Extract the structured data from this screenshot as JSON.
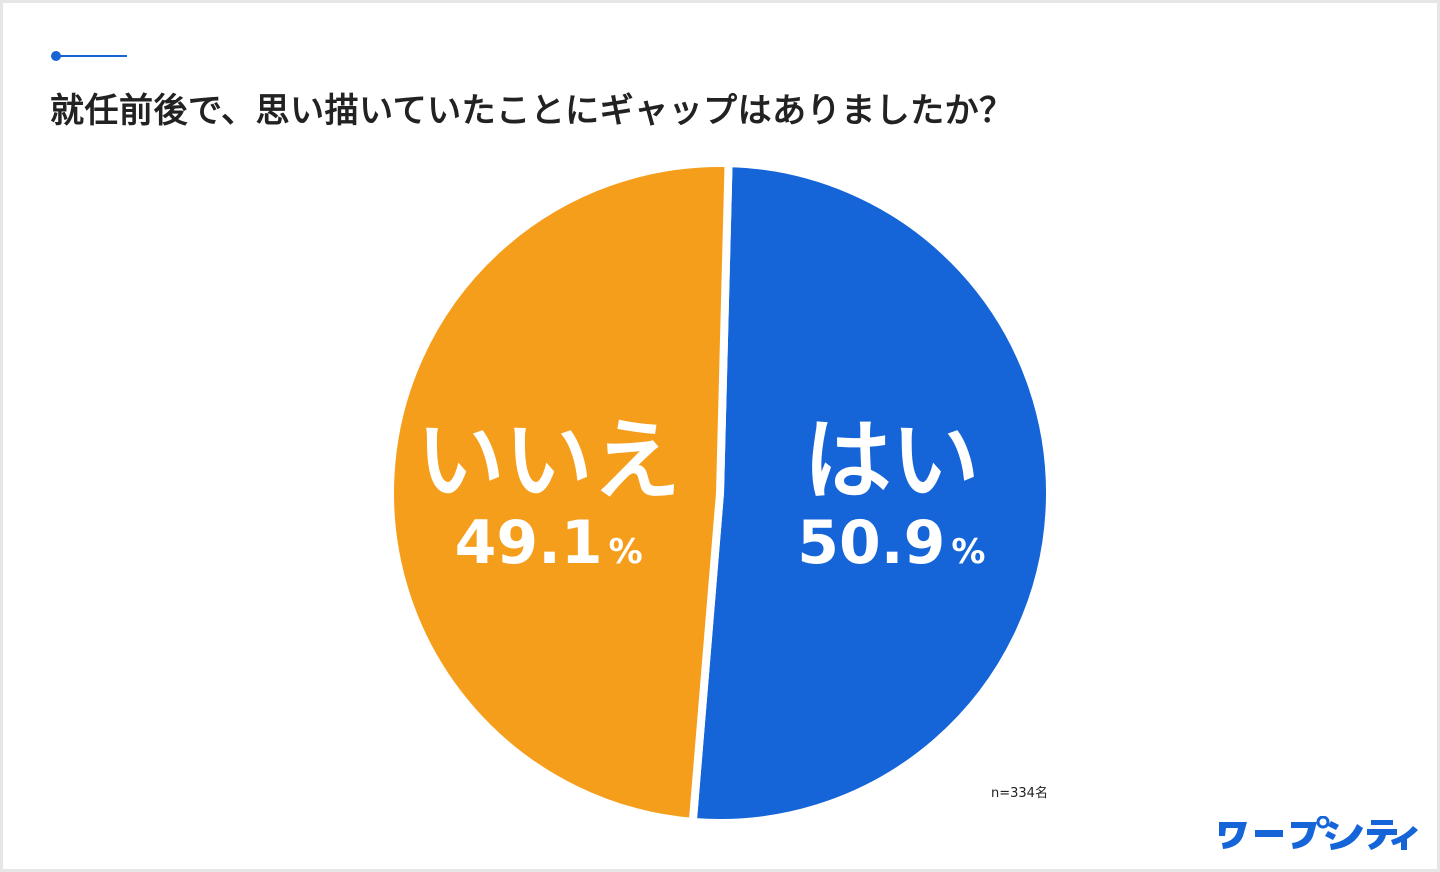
{
  "title": "就任前後で、思い描いていたことにギャップはありましたか？",
  "colors": {
    "accent": "#1565d8",
    "yes": "#1565d8",
    "no": "#f59e1c",
    "logo": "#1565d8"
  },
  "chart_data": {
    "type": "pie",
    "title": "就任前後で、思い描いていたことにギャップはありましたか？",
    "slices": [
      {
        "label": "はい",
        "value": 50.9,
        "display": "50.9",
        "color": "#1565d8"
      },
      {
        "label": "いいえ",
        "value": 49.1,
        "display": "49.1",
        "color": "#f59e1c"
      }
    ],
    "unit": "%"
  },
  "sample_note": "n=334名",
  "logo_text": "ワープシティ"
}
